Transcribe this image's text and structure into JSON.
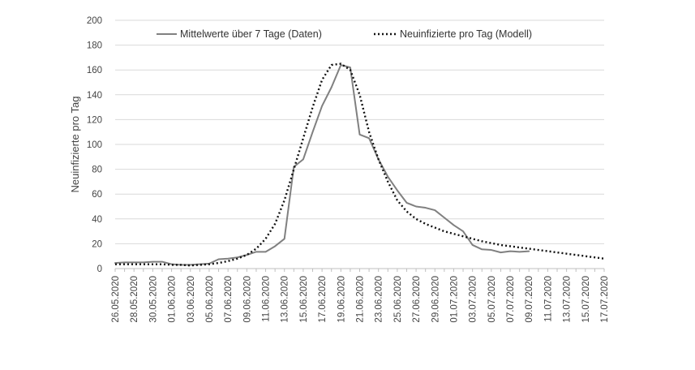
{
  "chart_data": {
    "type": "line",
    "ylabel": "Neuinfizierte pro Tag",
    "ylim": [
      0,
      200
    ],
    "y_ticks": [
      0,
      20,
      40,
      60,
      80,
      100,
      120,
      140,
      160,
      180,
      200
    ],
    "grid": "horizontal",
    "legend_position": "top",
    "x_dates": [
      "26.05.2020",
      "27.05.2020",
      "28.05.2020",
      "29.05.2020",
      "30.05.2020",
      "31.05.2020",
      "01.06.2020",
      "02.06.2020",
      "03.06.2020",
      "04.06.2020",
      "05.06.2020",
      "06.06.2020",
      "07.06.2020",
      "08.06.2020",
      "09.06.2020",
      "10.06.2020",
      "11.06.2020",
      "12.06.2020",
      "13.06.2020",
      "14.06.2020",
      "15.06.2020",
      "16.06.2020",
      "17.06.2020",
      "18.06.2020",
      "19.06.2020",
      "20.06.2020",
      "21.06.2020",
      "22.06.2020",
      "23.06.2020",
      "24.06.2020",
      "25.06.2020",
      "26.06.2020",
      "27.06.2020",
      "28.06.2020",
      "29.06.2020",
      "30.06.2020",
      "01.07.2020",
      "02.07.2020",
      "03.07.2020",
      "04.07.2020",
      "05.07.2020",
      "06.07.2020",
      "07.07.2020",
      "08.07.2020",
      "09.07.2020",
      "10.07.2020",
      "11.07.2020",
      "12.07.2020",
      "13.07.2020",
      "14.07.2020",
      "15.07.2020",
      "16.07.2020",
      "17.07.2020"
    ],
    "x_tick_labels": [
      "26.05.2020",
      "28.05.2020",
      "30.05.2020",
      "01.06.2020",
      "03.06.2020",
      "05.06.2020",
      "07.06.2020",
      "09.06.2020",
      "11.06.2020",
      "13.06.2020",
      "15.06.2020",
      "17.06.2020",
      "19.06.2020",
      "21.06.2020",
      "23.06.2020",
      "25.06.2020",
      "27.06.2020",
      "29.06.2020",
      "01.07.2020",
      "03.07.2020",
      "05.07.2020",
      "07.07.2020",
      "09.07.2020",
      "11.07.2020",
      "13.07.2020",
      "15.07.2020",
      "17.07.2020"
    ],
    "series": [
      {
        "name": "Mittelwerte über 7 Tage (Daten)",
        "style": "solid",
        "color": "#808080",
        "x": [
          "26.05.2020",
          "27.05.2020",
          "28.05.2020",
          "29.05.2020",
          "30.05.2020",
          "31.05.2020",
          "01.06.2020",
          "02.06.2020",
          "03.06.2020",
          "04.06.2020",
          "05.06.2020",
          "06.06.2020",
          "07.06.2020",
          "08.06.2020",
          "09.06.2020",
          "10.06.2020",
          "11.06.2020",
          "12.06.2020",
          "13.06.2020",
          "14.06.2020",
          "15.06.2020",
          "16.06.2020",
          "17.06.2020",
          "18.06.2020",
          "19.06.2020",
          "20.06.2020",
          "21.06.2020",
          "22.06.2020",
          "23.06.2020",
          "24.06.2020",
          "25.06.2020",
          "26.06.2020",
          "27.06.2020",
          "28.06.2020",
          "29.06.2020",
          "30.06.2020",
          "01.07.2020",
          "02.07.2020",
          "03.07.2020",
          "04.07.2020",
          "05.07.2020",
          "06.07.2020",
          "07.07.2020",
          "08.07.2020",
          "09.07.2020"
        ],
        "values": [
          4.5,
          5,
          5,
          5,
          5.5,
          5.5,
          3.5,
          3,
          3,
          3.5,
          4,
          7.5,
          8,
          9,
          11,
          13.5,
          13.5,
          18,
          24,
          82,
          88,
          110,
          131,
          146,
          164,
          162,
          108,
          105,
          88,
          74,
          63,
          53,
          50,
          49,
          47,
          41,
          35,
          30,
          19,
          15.5,
          15,
          13,
          14,
          13.5,
          14
        ]
      },
      {
        "name": "Neuinfizierte pro Tag (Modell)",
        "style": "dotted",
        "color": "#111111",
        "x": [
          "26.05.2020",
          "27.05.2020",
          "28.05.2020",
          "29.05.2020",
          "30.05.2020",
          "31.05.2020",
          "01.06.2020",
          "02.06.2020",
          "03.06.2020",
          "04.06.2020",
          "05.06.2020",
          "06.06.2020",
          "07.06.2020",
          "08.06.2020",
          "09.06.2020",
          "10.06.2020",
          "11.06.2020",
          "12.06.2020",
          "13.06.2020",
          "14.06.2020",
          "15.06.2020",
          "16.06.2020",
          "17.06.2020",
          "18.06.2020",
          "19.06.2020",
          "20.06.2020",
          "21.06.2020",
          "22.06.2020",
          "23.06.2020",
          "24.06.2020",
          "25.06.2020",
          "26.06.2020",
          "27.06.2020",
          "28.06.2020",
          "29.06.2020",
          "30.06.2020",
          "01.07.2020",
          "02.07.2020",
          "03.07.2020",
          "04.07.2020",
          "05.07.2020",
          "06.07.2020",
          "07.07.2020",
          "08.07.2020",
          "09.07.2020",
          "10.07.2020",
          "11.07.2020",
          "12.07.2020",
          "13.07.2020",
          "14.07.2020",
          "15.07.2020",
          "16.07.2020",
          "17.07.2020"
        ],
        "values": [
          3.5,
          3.5,
          3.5,
          3.5,
          3.5,
          3.5,
          3,
          3,
          2.5,
          3,
          3.5,
          4.5,
          6,
          8,
          11,
          16,
          24,
          36,
          55,
          80,
          105,
          130,
          152,
          164,
          165,
          160,
          140,
          110,
          88,
          70,
          55,
          46,
          40,
          36,
          33,
          30,
          28,
          26,
          24,
          22,
          20.5,
          19,
          18,
          17,
          16,
          15,
          14,
          13,
          12,
          11,
          10,
          9,
          8
        ]
      }
    ]
  }
}
